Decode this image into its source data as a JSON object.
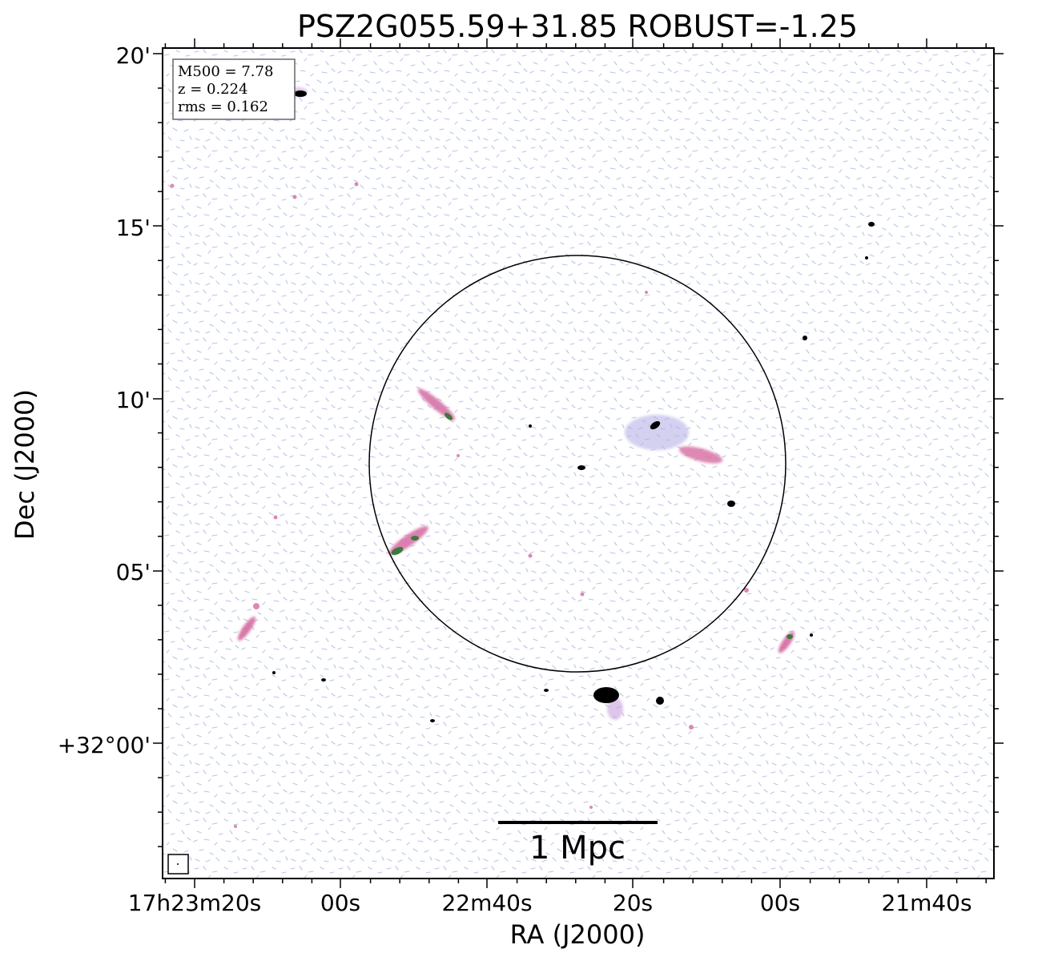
{
  "figure": {
    "title": "PSZ2G055.59+31.85 ROBUST=-1.25",
    "xlabel": "RA (J2000)",
    "ylabel": "Dec (J2000)",
    "ra_ticks": [
      "17h23m20s",
      "00s",
      "22m40s",
      "20s",
      "00s",
      "21m40s"
    ],
    "dec_ticks": [
      "20'",
      "15'",
      "10'",
      "05'",
      "+32°00'"
    ],
    "info": {
      "m500": "M500 = 7.78",
      "z": "z = 0.224",
      "rms": "rms = 0.162"
    },
    "scalebar_label": "1 Mpc",
    "colors": {
      "noise": "#8a9de0",
      "diffuse": "#d46aa0",
      "bright": "#000000",
      "mid": "#3a7a3a"
    }
  }
}
